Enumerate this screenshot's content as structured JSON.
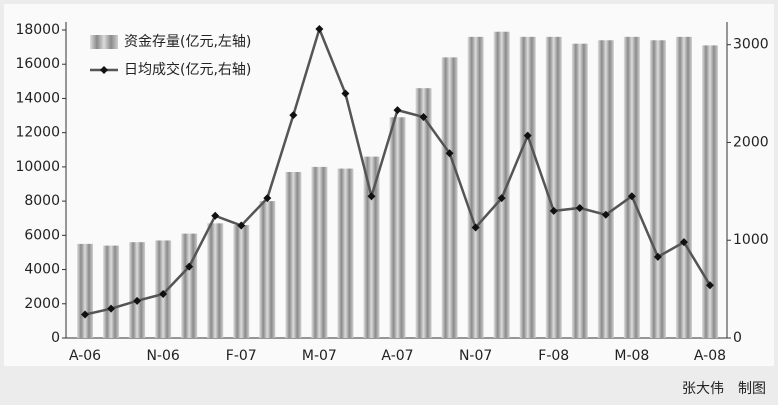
{
  "chart_data": {
    "type": "bar-line",
    "categories": [
      "A-06",
      null,
      null,
      "N-06",
      null,
      null,
      "F-07",
      null,
      null,
      "M-07",
      null,
      null,
      "A-07",
      null,
      null,
      "N-07",
      null,
      null,
      "F-08",
      null,
      null,
      "M-08",
      null,
      null,
      "A-08"
    ],
    "series": [
      {
        "name": "资金存量(亿元,左轴)",
        "type": "bar",
        "color": "#9a9a9a",
        "values": [
          5500,
          5400,
          5600,
          5700,
          6100,
          6700,
          6600,
          8000,
          9700,
          10000,
          9900,
          10600,
          12900,
          14600,
          16400,
          17600,
          17900,
          17600,
          17600,
          17200,
          17400,
          17600,
          17400,
          17600,
          17100
        ]
      },
      {
        "name": "日均成交(亿元,右轴)",
        "type": "line",
        "axis": "y2",
        "color": "#555555",
        "values": [
          240,
          300,
          380,
          450,
          730,
          1250,
          1150,
          1430,
          2280,
          3160,
          2500,
          1450,
          2330,
          2260,
          1890,
          1130,
          1430,
          2070,
          1300,
          1330,
          1260,
          1450,
          830,
          980,
          540
        ]
      }
    ],
    "ylim": [
      0,
      18000
    ],
    "yticks": [
      0,
      2000,
      4000,
      6000,
      8000,
      10000,
      12000,
      14000,
      16000,
      18000
    ],
    "y2lim": [
      0,
      3150
    ],
    "y2ticks": [
      0,
      1000,
      2000,
      3000
    ]
  },
  "caption": "张大伟　制图"
}
